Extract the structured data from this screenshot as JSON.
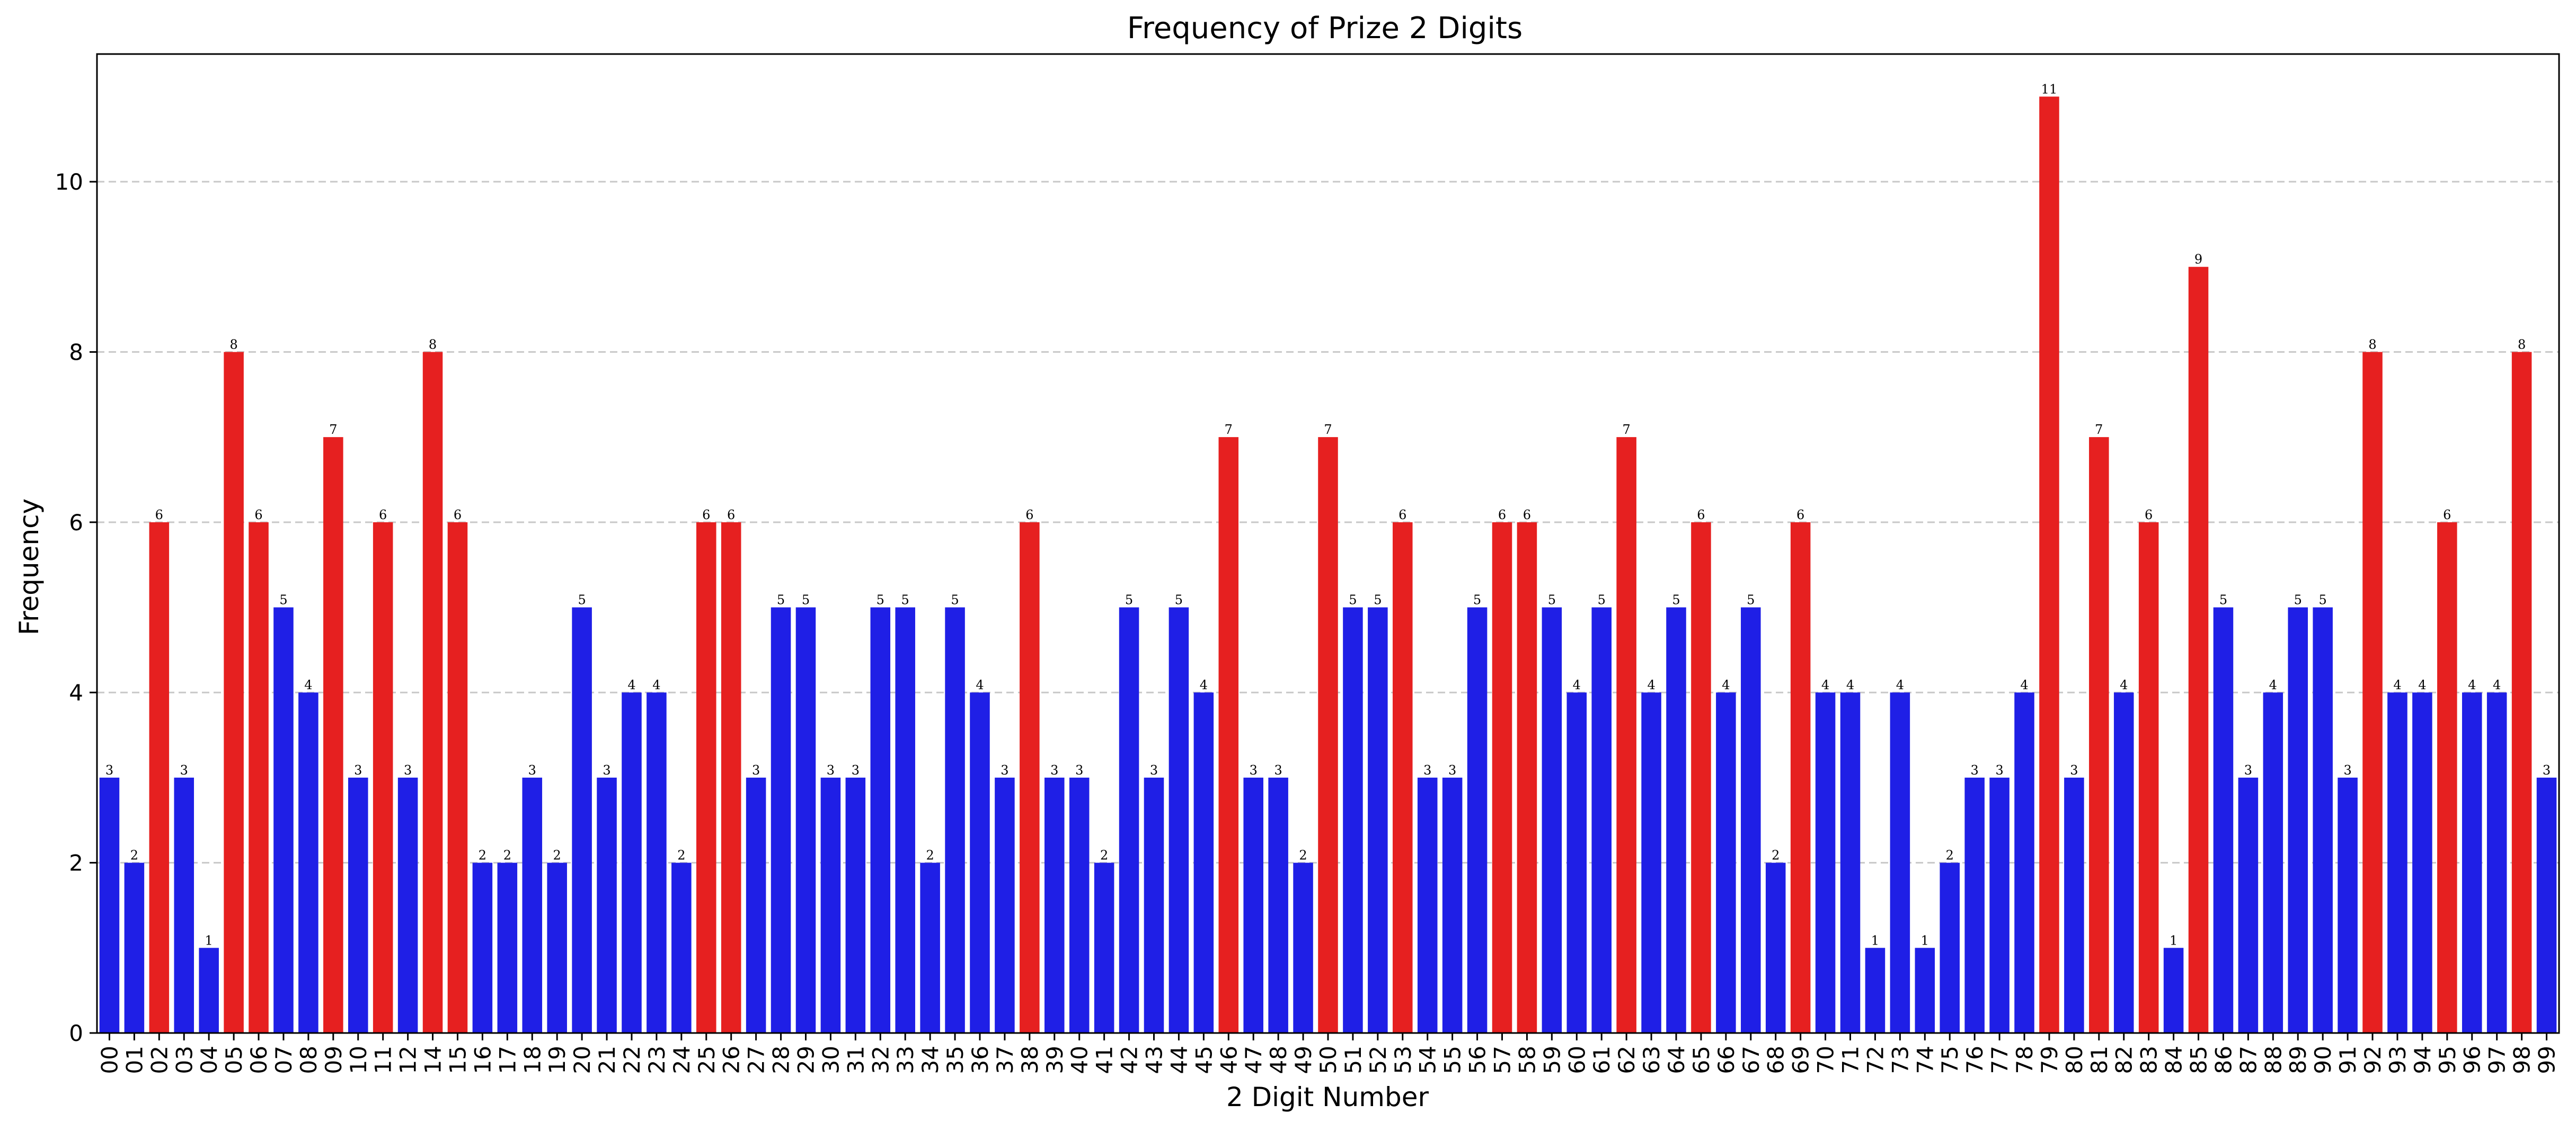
{
  "chart_data": {
    "type": "bar",
    "title": "Frequency of Prize 2 Digits",
    "xlabel": "2 Digit Number",
    "ylabel": "Frequency",
    "ylim": [
      0,
      11.5
    ],
    "yticks": [
      0,
      2,
      4,
      6,
      8,
      10
    ],
    "grid": "y-dashed",
    "colors": {
      "high": "#e62020",
      "normal": "#1f1fe6"
    },
    "highlight_rule": "value >= 6 shown in red",
    "categories": [
      "00",
      "01",
      "02",
      "03",
      "04",
      "05",
      "06",
      "07",
      "08",
      "09",
      "10",
      "11",
      "12",
      "14",
      "15",
      "16",
      "17",
      "18",
      "19",
      "20",
      "21",
      "22",
      "23",
      "24",
      "25",
      "26",
      "27",
      "28",
      "29",
      "30",
      "31",
      "32",
      "33",
      "34",
      "35",
      "36",
      "37",
      "38",
      "39",
      "40",
      "41",
      "42",
      "43",
      "44",
      "45",
      "46",
      "47",
      "48",
      "49",
      "50",
      "51",
      "52",
      "53",
      "54",
      "55",
      "56",
      "57",
      "58",
      "59",
      "60",
      "61",
      "62",
      "63",
      "64",
      "65",
      "66",
      "67",
      "68",
      "69",
      "70",
      "71",
      "72",
      "73",
      "74",
      "75",
      "76",
      "77",
      "78",
      "79",
      "80",
      "81",
      "82",
      "83",
      "84",
      "85",
      "86",
      "87",
      "88",
      "89",
      "90",
      "91",
      "92",
      "93",
      "94",
      "95",
      "96",
      "97",
      "98",
      "99"
    ],
    "values": [
      3,
      2,
      6,
      3,
      1,
      8,
      6,
      5,
      4,
      7,
      3,
      6,
      3,
      8,
      6,
      2,
      2,
      3,
      2,
      5,
      3,
      4,
      4,
      2,
      6,
      6,
      3,
      5,
      5,
      3,
      3,
      5,
      5,
      2,
      5,
      4,
      3,
      6,
      3,
      3,
      2,
      5,
      3,
      5,
      4,
      7,
      3,
      3,
      2,
      7,
      5,
      5,
      6,
      3,
      3,
      5,
      6,
      6,
      5,
      4,
      5,
      7,
      4,
      5,
      6,
      4,
      5,
      2,
      6,
      4,
      4,
      1,
      4,
      1,
      2,
      3,
      3,
      4,
      11,
      3,
      7,
      4,
      6,
      1,
      9,
      5,
      3,
      4,
      5,
      5,
      3,
      8,
      4,
      4,
      6,
      4,
      4,
      8,
      3
    ]
  }
}
